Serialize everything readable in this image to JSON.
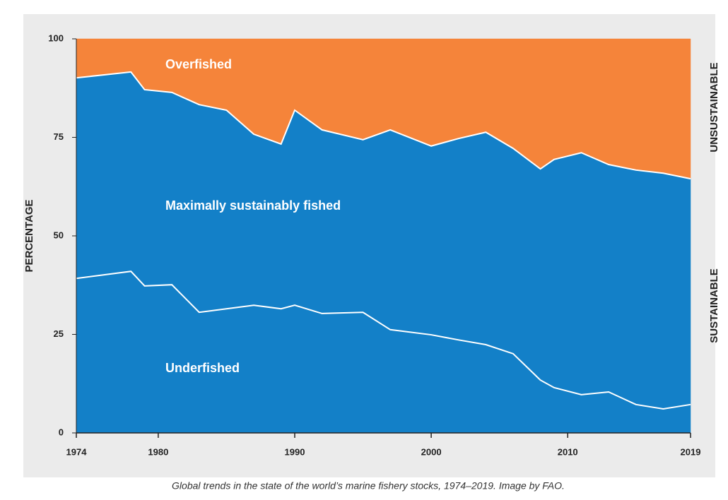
{
  "chart_data": {
    "type": "stacked-area",
    "ylabel": "PERCENTAGE",
    "caption": "Global trends in the state of the world’s marine fishery stocks, 1974–2019. Image by FAO.",
    "side_labels": [
      "UNSUSTAINABLE",
      "SUSTAINABLE"
    ],
    "x": [
      1974,
      1978,
      1979,
      1981,
      1983,
      1985,
      1987,
      1989,
      1990,
      1992,
      1995,
      1997,
      2000,
      2002,
      2004,
      2006,
      2008,
      2009,
      2011,
      2013,
      2015,
      2017,
      2019
    ],
    "series": [
      {
        "name": "Underfished",
        "color": "#1380c8",
        "values": [
          39.2,
          41.0,
          37.3,
          37.6,
          30.6,
          31.5,
          32.4,
          31.5,
          32.4,
          30.3,
          30.6,
          26.2,
          24.9,
          23.6,
          22.4,
          20.1,
          13.4,
          11.5,
          9.7,
          10.4,
          7.2,
          6.1,
          7.2
        ]
      },
      {
        "name": "Maximally sustainably fished",
        "color": "#1380c8",
        "values": [
          50.9,
          50.6,
          49.8,
          48.8,
          52.7,
          50.4,
          43.4,
          41.8,
          49.5,
          46.6,
          43.8,
          50.7,
          47.9,
          51.1,
          53.9,
          52.1,
          53.6,
          57.9,
          61.4,
          57.7,
          59.5,
          59.8,
          57.3
        ]
      },
      {
        "name": "Overfished",
        "color": "#f5843a",
        "values": [
          9.9,
          8.4,
          12.9,
          13.6,
          16.7,
          18.1,
          24.2,
          26.7,
          18.1,
          23.1,
          25.6,
          23.1,
          27.2,
          25.3,
          23.7,
          27.8,
          33.0,
          30.6,
          28.9,
          31.9,
          33.3,
          34.1,
          35.5
        ]
      }
    ],
    "xlim": [
      1974,
      2019
    ],
    "xticks": [
      1974,
      1980,
      1990,
      2000,
      2010,
      2019
    ],
    "ylim": [
      0,
      100
    ],
    "yticks": [
      0,
      25,
      50,
      75,
      100
    ]
  }
}
